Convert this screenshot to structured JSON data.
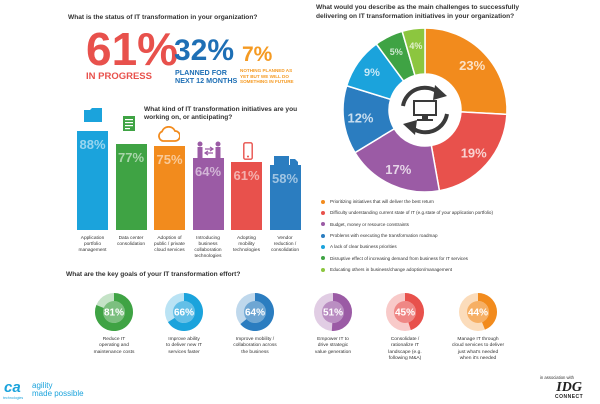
{
  "status": {
    "question": "What is the status of IT transformation in your organization?",
    "stats": [
      {
        "value": "61%",
        "label_lines": [
          "IN PROGRESS"
        ],
        "color": "#e8514c"
      },
      {
        "value": "32%",
        "label_lines": [
          "PLANNED FOR",
          "NEXT 12 MONTHS"
        ],
        "color": "#1e6fb5"
      },
      {
        "value": "7%",
        "label_lines": [
          "NOTHING PLANNED AS",
          "YET BUT WE WILL DO",
          "SOMETHING IN FUTURE"
        ],
        "color": "#f59a22"
      }
    ]
  },
  "initiatives": {
    "question_lines": [
      "What kind of IT transformation initiatives are you",
      "working on, or anticipating?"
    ]
  },
  "challenges": {
    "question_lines": [
      "What would you describe as the main challenges to successfully",
      "delivering on IT transformation initiatives in your organization?"
    ]
  },
  "goals": {
    "question": "What are the key goals of your IT transformation effort?"
  },
  "footer": {
    "brand_small": "technologies",
    "brand_logo": "ca",
    "tagline_line1": "agility",
    "tagline_line2": "made possible",
    "assoc": "in association with",
    "idg_name": "IDG",
    "idg_sub": "CONNECT"
  },
  "icons": [
    "folder-icon",
    "document-icon",
    "cloud-icon",
    "people-exchange-icon",
    "mobile-phone-icon",
    "delivery-truck-icon",
    "computer-monitor-icon",
    "refresh-arrows-icon"
  ],
  "chart_data": [
    {
      "type": "bar",
      "categories": [
        "Application portfolio management",
        "Data center consolidation",
        "Adoption of public / private cloud services",
        "Introducing business collaboration technologies",
        "Adopting mobility technologies",
        "Vendor reduction / consolidation"
      ],
      "category_lines": [
        [
          "Application",
          "portfolio",
          "management"
        ],
        [
          "Data center",
          "consolidation"
        ],
        [
          "Adoption of",
          "public / private",
          "cloud services"
        ],
        [
          "Introducing",
          "business",
          "collaboration",
          "technologies"
        ],
        [
          "Adopting",
          "mobility",
          "technologies"
        ],
        [
          "Vendor",
          "reduction /",
          "consolidation"
        ]
      ],
      "values": [
        88,
        77,
        75,
        64,
        61,
        58
      ],
      "value_labels": [
        "88%",
        "77%",
        "75%",
        "64%",
        "61%",
        "58%"
      ],
      "colors": [
        "#1ba3dc",
        "#3fa344",
        "#f28b1d",
        "#9b5ba5",
        "#e8514c",
        "#2b7dc0"
      ],
      "ylim": [
        0,
        100
      ],
      "grid": false
    },
    {
      "type": "pie",
      "labels": [
        "Prioritizing initiatives that will deliver the best return",
        "Difficulty understanding current state of IT (e.g.state of your application portfolio)",
        "Budget, money or resource constraints",
        "Problems with executing the transformation roadmap",
        "A lack of clear business priorities",
        "Disruptive effect of increasing demand from business for IT services",
        "Educating others in business/change adoption/management"
      ],
      "values": [
        23,
        19,
        17,
        12,
        9,
        5,
        4
      ],
      "value_labels": [
        "23%",
        "19%",
        "17%",
        "12%",
        "9%",
        "5%",
        "4%"
      ],
      "colors": [
        "#f28b1d",
        "#e8514c",
        "#9b5ba5",
        "#2b7dc0",
        "#1ba3dc",
        "#3fa344",
        "#8cc63f"
      ],
      "legend": "bottom"
    },
    {
      "type": "pie",
      "labels": [
        "Reduce IT operating and maintenance costs",
        "Improve ability to deliver new IT services faster",
        "Improve mobility / collaboration across the business",
        "Empower IT to drive strategic value generation",
        "Consolidate / rationalize IT landscape (e.g. following M&A)",
        "Manage IT through cloud services to deliver just what's needed when it's needed"
      ],
      "label_lines": [
        [
          "Reduce IT",
          "operating and",
          "maintenance costs"
        ],
        [
          "Improve ability",
          "to deliver new IT",
          "services faster"
        ],
        [
          "Improve mobility /",
          "collaboration across",
          "the business"
        ],
        [
          "Empower IT to",
          "drive strategic",
          "value generation"
        ],
        [
          "Consolidate /",
          "rationalize IT",
          "landscape (e.g.",
          "following M&A)"
        ],
        [
          "Manage IT through",
          "cloud services to deliver",
          "just what's needed",
          "when it's needed"
        ]
      ],
      "values": [
        81,
        66,
        64,
        51,
        45,
        44
      ],
      "value_labels": [
        "81%",
        "66%",
        "64%",
        "51%",
        "45%",
        "44%"
      ],
      "colors": [
        "#3fa344",
        "#1ba3dc",
        "#2b7dc0",
        "#9b5ba5",
        "#e8514c",
        "#f28b1d"
      ]
    }
  ]
}
